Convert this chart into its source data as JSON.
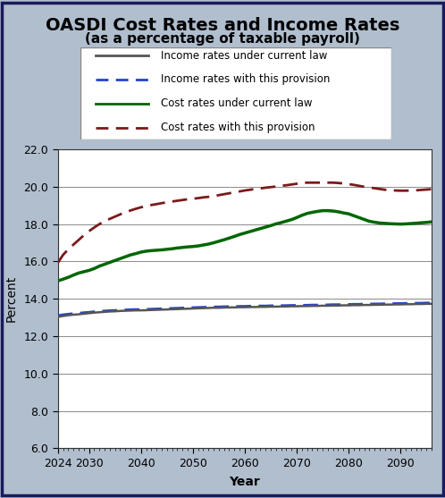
{
  "title": "OASDI Cost Rates and Income Rates",
  "subtitle": "(as a percentage of taxable payroll)",
  "xlabel": "Year",
  "ylabel": "Percent",
  "bg_color": "#b0bece",
  "plot_bg_color": "#ffffff",
  "fig_border_color": "#1a1a5e",
  "xlim": [
    2024,
    2096
  ],
  "ylim": [
    6.0,
    22.0
  ],
  "yticks": [
    6.0,
    8.0,
    10.0,
    12.0,
    14.0,
    16.0,
    18.0,
    20.0,
    22.0
  ],
  "xticks": [
    2024,
    2030,
    2040,
    2050,
    2060,
    2070,
    2080,
    2090
  ],
  "years": [
    2024,
    2025,
    2026,
    2027,
    2028,
    2029,
    2030,
    2031,
    2032,
    2033,
    2034,
    2035,
    2036,
    2037,
    2038,
    2039,
    2040,
    2041,
    2042,
    2043,
    2044,
    2045,
    2046,
    2047,
    2048,
    2049,
    2050,
    2051,
    2052,
    2053,
    2054,
    2055,
    2056,
    2057,
    2058,
    2059,
    2060,
    2061,
    2062,
    2063,
    2064,
    2065,
    2066,
    2067,
    2068,
    2069,
    2070,
    2071,
    2072,
    2073,
    2074,
    2075,
    2076,
    2077,
    2078,
    2079,
    2080,
    2081,
    2082,
    2083,
    2084,
    2085,
    2086,
    2087,
    2088,
    2089,
    2090,
    2091,
    2092,
    2093,
    2094,
    2095,
    2096
  ],
  "income_current_law": [
    13.03,
    13.08,
    13.12,
    13.15,
    13.17,
    13.2,
    13.23,
    13.26,
    13.28,
    13.3,
    13.32,
    13.33,
    13.35,
    13.36,
    13.37,
    13.38,
    13.38,
    13.39,
    13.4,
    13.41,
    13.42,
    13.43,
    13.44,
    13.45,
    13.46,
    13.47,
    13.48,
    13.49,
    13.5,
    13.51,
    13.52,
    13.52,
    13.53,
    13.54,
    13.54,
    13.55,
    13.55,
    13.56,
    13.56,
    13.57,
    13.57,
    13.58,
    13.58,
    13.59,
    13.59,
    13.6,
    13.6,
    13.61,
    13.61,
    13.62,
    13.62,
    13.63,
    13.63,
    13.64,
    13.64,
    13.65,
    13.65,
    13.66,
    13.66,
    13.67,
    13.67,
    13.68,
    13.68,
    13.69,
    13.69,
    13.7,
    13.7,
    13.71,
    13.71,
    13.72,
    13.72,
    13.73,
    13.73
  ],
  "income_provision": [
    13.1,
    13.15,
    13.18,
    13.21,
    13.23,
    13.26,
    13.28,
    13.31,
    13.33,
    13.35,
    13.37,
    13.38,
    13.4,
    13.41,
    13.42,
    13.43,
    13.43,
    13.44,
    13.45,
    13.46,
    13.47,
    13.48,
    13.49,
    13.5,
    13.51,
    13.52,
    13.53,
    13.54,
    13.55,
    13.56,
    13.57,
    13.57,
    13.58,
    13.59,
    13.59,
    13.6,
    13.6,
    13.61,
    13.61,
    13.62,
    13.62,
    13.63,
    13.63,
    13.64,
    13.64,
    13.65,
    13.65,
    13.66,
    13.66,
    13.67,
    13.67,
    13.68,
    13.68,
    13.69,
    13.69,
    13.7,
    13.7,
    13.71,
    13.71,
    13.72,
    13.72,
    13.73,
    13.73,
    13.74,
    13.74,
    13.75,
    13.75,
    13.76,
    13.76,
    13.77,
    13.77,
    13.78,
    13.78
  ],
  "cost_current_law": [
    14.96,
    15.05,
    15.15,
    15.27,
    15.38,
    15.45,
    15.52,
    15.62,
    15.75,
    15.85,
    15.95,
    16.05,
    16.15,
    16.25,
    16.35,
    16.42,
    16.5,
    16.55,
    16.58,
    16.6,
    16.62,
    16.65,
    16.68,
    16.72,
    16.75,
    16.78,
    16.8,
    16.83,
    16.88,
    16.93,
    17.0,
    17.08,
    17.16,
    17.25,
    17.34,
    17.44,
    17.52,
    17.6,
    17.68,
    17.76,
    17.84,
    17.92,
    18.01,
    18.08,
    18.16,
    18.24,
    18.35,
    18.47,
    18.57,
    18.63,
    18.68,
    18.72,
    18.72,
    18.7,
    18.66,
    18.6,
    18.55,
    18.45,
    18.35,
    18.25,
    18.15,
    18.1,
    18.06,
    18.04,
    18.02,
    18.01,
    18.0,
    18.01,
    18.03,
    18.05,
    18.07,
    18.09,
    18.12
  ],
  "cost_provision": [
    15.93,
    16.35,
    16.65,
    16.9,
    17.15,
    17.4,
    17.62,
    17.82,
    18.0,
    18.15,
    18.28,
    18.4,
    18.52,
    18.63,
    18.73,
    18.82,
    18.9,
    18.96,
    19.02,
    19.07,
    19.12,
    19.17,
    19.21,
    19.25,
    19.29,
    19.33,
    19.36,
    19.39,
    19.43,
    19.46,
    19.5,
    19.55,
    19.6,
    19.65,
    19.7,
    19.75,
    19.8,
    19.84,
    19.88,
    19.91,
    19.95,
    19.98,
    20.01,
    20.05,
    20.08,
    20.12,
    20.16,
    20.2,
    20.22,
    20.22,
    20.22,
    20.22,
    20.22,
    20.22,
    20.2,
    20.18,
    20.14,
    20.1,
    20.05,
    20.0,
    19.96,
    19.92,
    19.88,
    19.84,
    19.82,
    19.8,
    19.79,
    19.79,
    19.8,
    19.81,
    19.83,
    19.85,
    19.87
  ],
  "color_income_current": "#555555",
  "color_income_provision": "#2244cc",
  "color_cost_current": "#006600",
  "color_cost_provision": "#7a1a1a",
  "legend_labels": [
    "Income rates under current law",
    "Income rates with this provision",
    "Cost rates under current law",
    "Cost rates with this provision"
  ],
  "title_fontsize": 14,
  "subtitle_fontsize": 11,
  "axis_label_fontsize": 10,
  "tick_fontsize": 9,
  "legend_fontsize": 8.5
}
